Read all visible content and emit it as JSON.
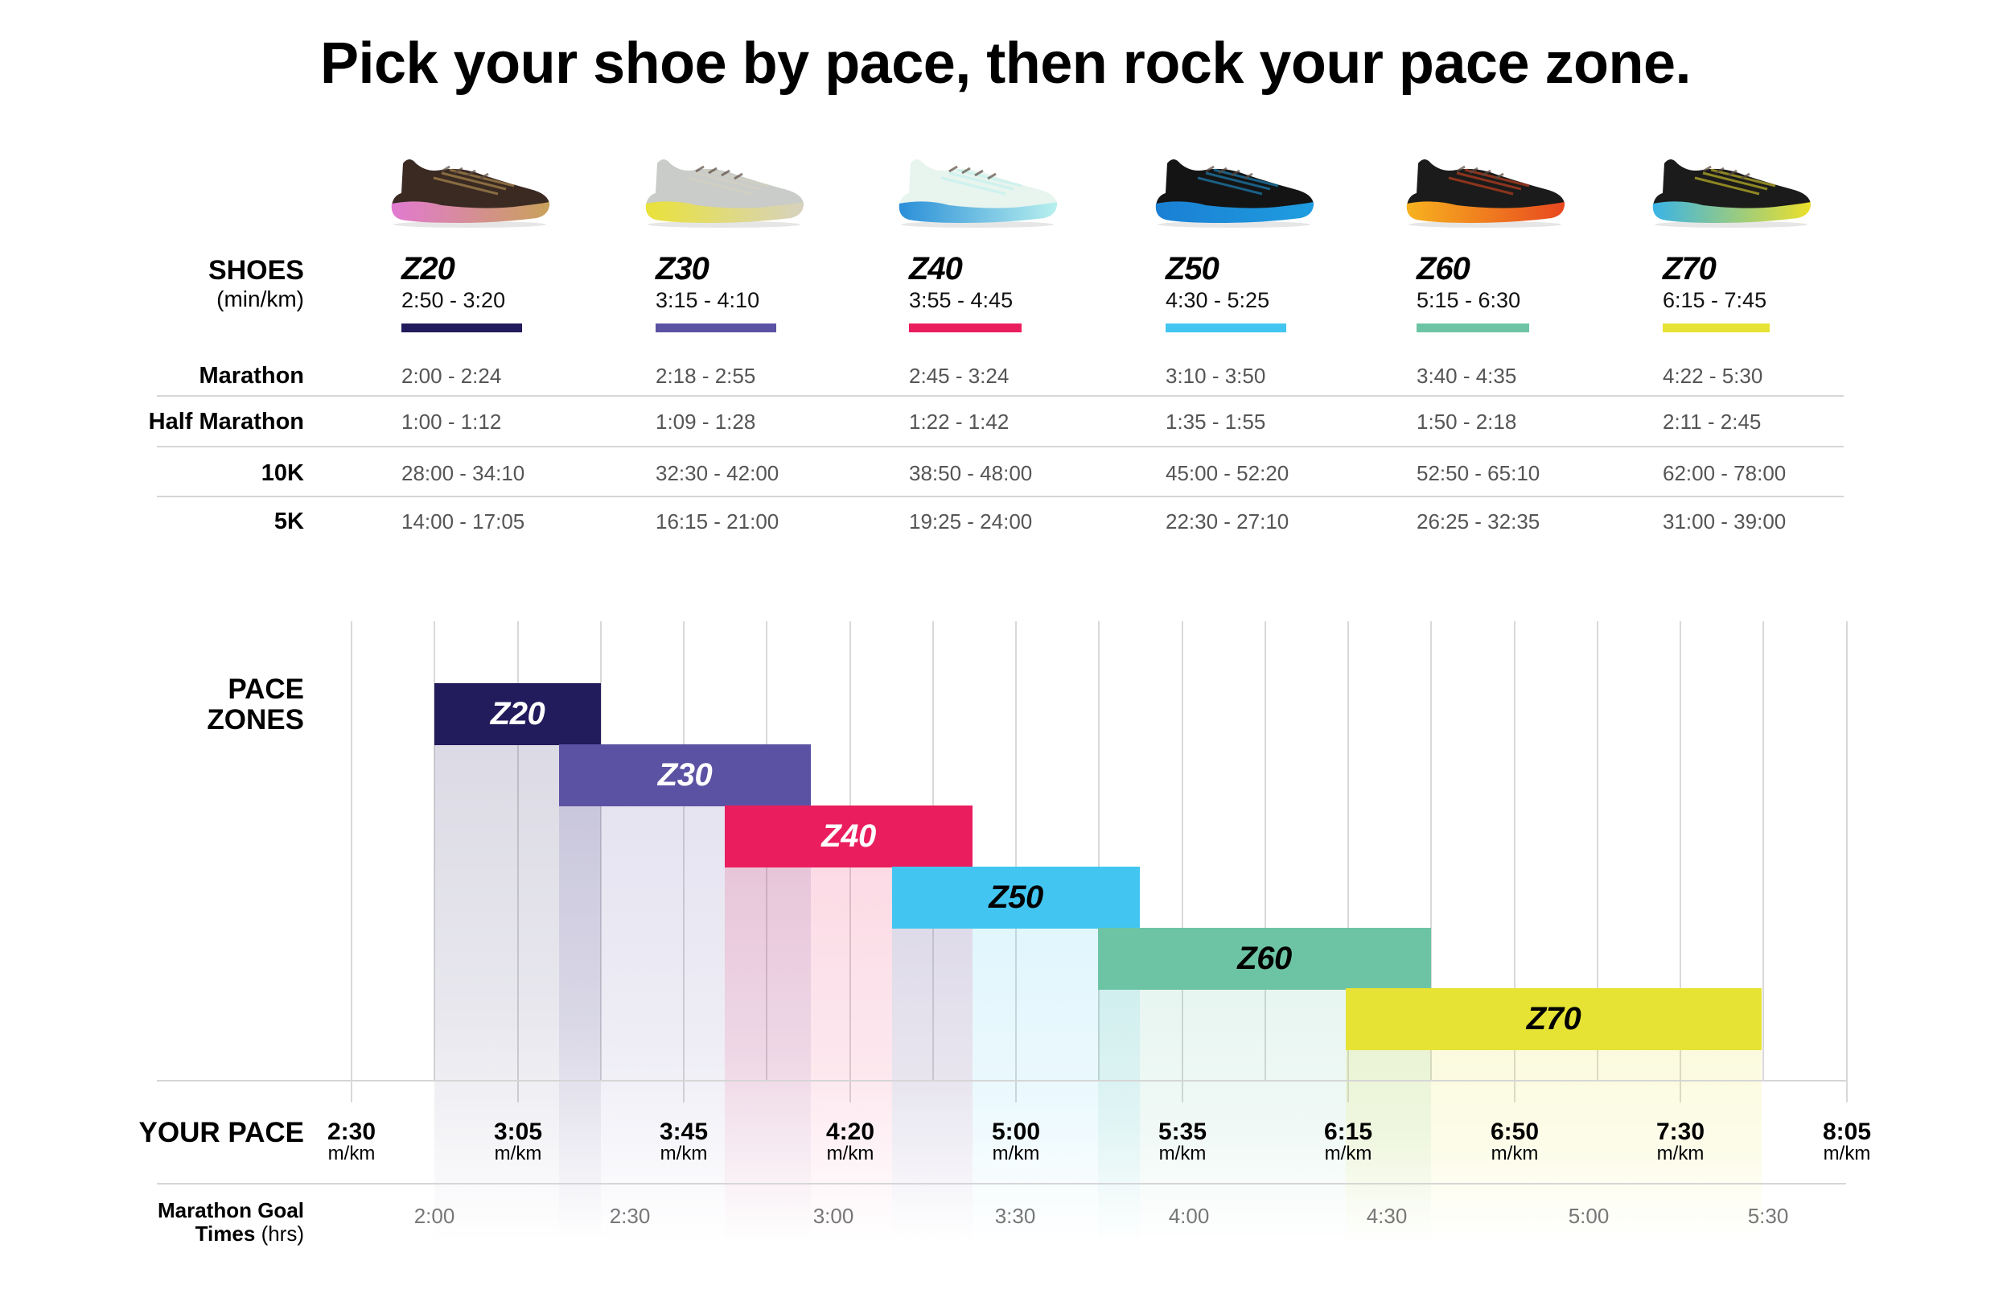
{
  "title": "Pick your shoe by pace, then rock your pace zone.",
  "shoes_section": {
    "label": "SHOES",
    "unit": "(min/km)",
    "row_labels": [
      "Marathon",
      "Half Marathon",
      "10K",
      "5K"
    ],
    "shoes": [
      {
        "name": "Z20",
        "range": "2:50 - 3:20",
        "color": "#221b5c",
        "image": "sneaker-z20-brown-pink",
        "upper": "#3a2a22",
        "sole_a": "#e27ad1",
        "sole_b": "#c9a15a",
        "times": [
          "2:00 - 2:24",
          "1:00 - 1:12",
          "28:00 - 34:10",
          "14:00 - 17:05"
        ]
      },
      {
        "name": "Z30",
        "range": "3:15 - 4:10",
        "color": "#5c52a3",
        "image": "sneaker-z30-grey-yellow",
        "upper": "#c9ccc8",
        "sole_a": "#e9e23a",
        "sole_b": "#d7d2bf",
        "times": [
          "2:18 - 2:55",
          "1:09 - 1:28",
          "32:30 - 42:00",
          "16:15 - 21:00"
        ]
      },
      {
        "name": "Z40",
        "range": "3:55 - 4:45",
        "color": "#ea1e5e",
        "image": "sneaker-z40-white-mint",
        "upper": "#e8f4ee",
        "sole_a": "#2a8fd8",
        "sole_b": "#b8f0ee",
        "times": [
          "2:45 - 3:24",
          "1:22 - 1:42",
          "38:50 - 48:00",
          "19:25 - 24:00"
        ]
      },
      {
        "name": "Z50",
        "range": "4:30 - 5:25",
        "color": "#42c6f1",
        "image": "sneaker-z50-black-blue",
        "upper": "#141414",
        "sole_a": "#1a7fd3",
        "sole_b": "#1f9de0",
        "times": [
          "3:10 - 3:50",
          "1:35 - 1:55",
          "45:00 - 52:20",
          "22:30 - 27:10"
        ]
      },
      {
        "name": "Z60",
        "range": "5:15 - 6:30",
        "color": "#6dc4a5",
        "image": "sneaker-z60-black-orange",
        "upper": "#1b1b1b",
        "sole_a": "#f7b21f",
        "sole_b": "#e8481f",
        "times": [
          "3:40 - 4:35",
          "1:50 - 2:18",
          "52:50 - 65:10",
          "26:25 - 32:35"
        ]
      },
      {
        "name": "Z70",
        "range": "6:15 - 7:45",
        "color": "#e6e335",
        "image": "sneaker-z70-black-yellow",
        "upper": "#1b1b1b",
        "sole_a": "#3ab3e6",
        "sole_b": "#ece02a",
        "times": [
          "4:22 - 5:30",
          "2:11 - 2:45",
          "62:00 - 78:00",
          "31:00 - 39:00"
        ]
      }
    ]
  },
  "zones_section": {
    "label_line1": "PACE",
    "label_line2": "ZONES",
    "pace_label": "YOUR PACE",
    "goal_label_line1": "Marathon Goal",
    "goal_label_line2_bold": "Times",
    "goal_label_line2_unit": "(hrs)",
    "pace_unit": "m/km",
    "pace_ticks": [
      "2:30",
      "3:05",
      "3:45",
      "4:20",
      "5:00",
      "5:35",
      "6:15",
      "6:50",
      "7:30",
      "8:05"
    ],
    "goal_times": [
      "2:00",
      "2:30",
      "3:00",
      "3:30",
      "4:00",
      "4:30",
      "5:00",
      "5:30"
    ]
  },
  "chart_data": {
    "type": "gantt-range-bar",
    "title": "Pick your shoe by pace, then rock your pace zone.",
    "xlabel": "YOUR PACE (m/km)",
    "ylabel": "PACE ZONES",
    "x_ticks": [
      "2:30",
      "3:05",
      "3:45",
      "4:20",
      "5:00",
      "5:35",
      "6:15",
      "6:50",
      "7:30",
      "8:05"
    ],
    "secondary_x_label": "Marathon Goal Times (hrs)",
    "secondary_x_ticks": [
      "2:00",
      "2:30",
      "3:00",
      "3:30",
      "4:00",
      "4:30",
      "5:00",
      "5:30"
    ],
    "grid": true,
    "series": [
      {
        "name": "Z20",
        "start": "2:50",
        "end": "3:20",
        "color": "#221b5c",
        "label_color": "#ffffff"
      },
      {
        "name": "Z30",
        "start": "3:15",
        "end": "4:10",
        "color": "#5c52a3",
        "label_color": "#ffffff"
      },
      {
        "name": "Z40",
        "start": "3:55",
        "end": "4:45",
        "color": "#ea1e5e",
        "label_color": "#ffffff"
      },
      {
        "name": "Z50",
        "start": "4:30",
        "end": "5:25",
        "color": "#42c6f1",
        "label_color": "#000000"
      },
      {
        "name": "Z60",
        "start": "5:15",
        "end": "6:30",
        "color": "#6dc4a5",
        "label_color": "#000000"
      },
      {
        "name": "Z70",
        "start": "6:15",
        "end": "7:45",
        "color": "#e6e335",
        "label_color": "#000000"
      }
    ],
    "table": {
      "columns": [
        "Z20",
        "Z30",
        "Z40",
        "Z50",
        "Z60",
        "Z70"
      ],
      "rows": [
        {
          "label": "Marathon",
          "values": [
            "2:00 - 2:24",
            "2:18 - 2:55",
            "2:45 - 3:24",
            "3:10 - 3:50",
            "3:40 - 4:35",
            "4:22 - 5:30"
          ]
        },
        {
          "label": "Half Marathon",
          "values": [
            "1:00 - 1:12",
            "1:09 - 1:28",
            "1:22 - 1:42",
            "1:35 - 1:55",
            "1:50 - 2:18",
            "2:11 - 2:45"
          ]
        },
        {
          "label": "10K",
          "values": [
            "28:00 - 34:10",
            "32:30 - 42:00",
            "38:50 - 48:00",
            "45:00 - 52:20",
            "52:50 - 65:10",
            "62:00 - 78:00"
          ]
        },
        {
          "label": "5K",
          "values": [
            "14:00 - 17:05",
            "16:15 - 21:00",
            "19:25 - 24:00",
            "22:30 - 27:10",
            "26:25 - 32:35",
            "31:00 - 39:00"
          ]
        }
      ]
    }
  }
}
